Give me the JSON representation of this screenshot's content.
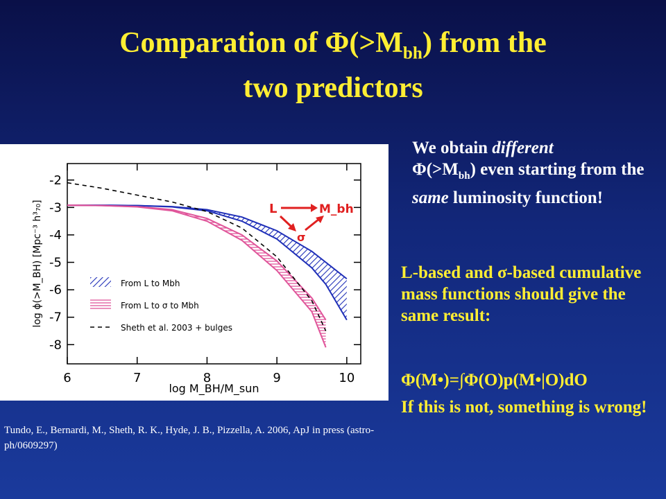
{
  "slide": {
    "title": {
      "before": "Comparation of  Φ(>M",
      "sub": "bh",
      "after": ") from the",
      "line2": "two predictors"
    },
    "intro": {
      "a": "We obtain ",
      "b": "different",
      "c": "Φ(>M",
      "d": "bh",
      "e": ") even starting from the ",
      "f": "same",
      "g": " luminosity function!"
    },
    "statement": "L-based and σ-based cumulative mass functions should give the same result:",
    "formula": "Φ(M•)=∫Φ(O)p(M•|O)dO",
    "conclusion": "If this is not, something is wrong!",
    "citation": "Tundo, E., Bernardi, M., Sheth, R. K., Hyde, J. B., Pizzella, A. 2006, ApJ in press  (astro-ph/0609297)"
  },
  "chart_data": {
    "type": "line",
    "xlabel": "log M_BH/M_sun",
    "ylabel": "log ϕ(>M_BH) [Mpc⁻³ h³₇₀]",
    "x": [
      6,
      6.5,
      7,
      7.5,
      8,
      8.5,
      9,
      9.5,
      9.7,
      10
    ],
    "xlim": [
      6,
      10.2
    ],
    "xticks": [
      6,
      7,
      8,
      9,
      10
    ],
    "ylim": [
      -8.7,
      -1.4
    ],
    "yticks": [
      -2,
      -3,
      -4,
      -5,
      -6,
      -7,
      -8
    ],
    "series": [
      {
        "name": "From L to Mbh",
        "color": "#1f2fb8",
        "style": "hatch-diagonal",
        "upper": [
          -2.92,
          -2.92,
          -2.93,
          -2.97,
          -3.08,
          -3.35,
          -3.85,
          -4.6,
          -5.0,
          -5.6
        ],
        "lower": [
          -2.92,
          -2.92,
          -2.93,
          -2.98,
          -3.12,
          -3.5,
          -4.15,
          -5.2,
          -5.8,
          -7.1
        ]
      },
      {
        "name": "From L to σ to Mbh",
        "color": "#e0559a",
        "style": "hatch-horizontal",
        "upper": [
          -2.92,
          -2.93,
          -2.97,
          -3.08,
          -3.4,
          -4.0,
          -4.95,
          -6.3,
          -7.1,
          null
        ],
        "lower": [
          -2.92,
          -2.93,
          -2.98,
          -3.12,
          -3.5,
          -4.2,
          -5.3,
          -6.8,
          -8.1,
          null
        ]
      },
      {
        "name": "Sheth et al. 2003 + bulges",
        "color": "#000000",
        "style": "dashed",
        "values": [
          -2.1,
          -2.3,
          -2.55,
          -2.8,
          -3.15,
          -3.75,
          -4.8,
          -6.4,
          -7.5,
          null
        ]
      }
    ],
    "annotations": {
      "from": "L",
      "to": "M_bh",
      "via": "σ"
    }
  }
}
